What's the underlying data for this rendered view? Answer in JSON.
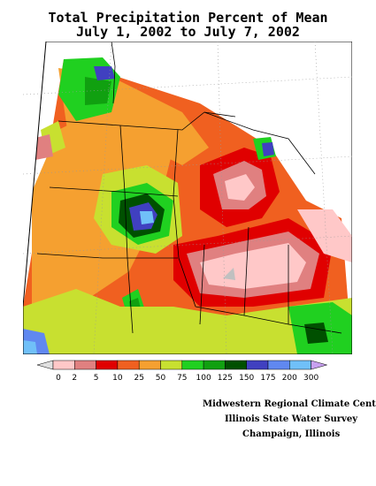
{
  "title": {
    "line1": "Total Precipitation Percent of Mean",
    "line2": "July 1, 2002 to July 7, 2002"
  },
  "legend": {
    "labels": [
      "0",
      "2",
      "5",
      "10",
      "25",
      "50",
      "75",
      "100",
      "125",
      "150",
      "175",
      "200",
      "300"
    ],
    "colors": [
      "#ffc8c8",
      "#e08080",
      "#e00000",
      "#f06020",
      "#f5a030",
      "#c8e030",
      "#20d020",
      "#10a010",
      "#005000",
      "#4040c0",
      "#6088f0",
      "#70c0f8"
    ],
    "under_color": "#e0e0e0",
    "over_color": "#c8a0f0"
  },
  "credits": {
    "line1": "Midwestern Regional Climate Center",
    "line2": "Illinois State Water Survey",
    "line3": "Champaign, Illinois"
  }
}
